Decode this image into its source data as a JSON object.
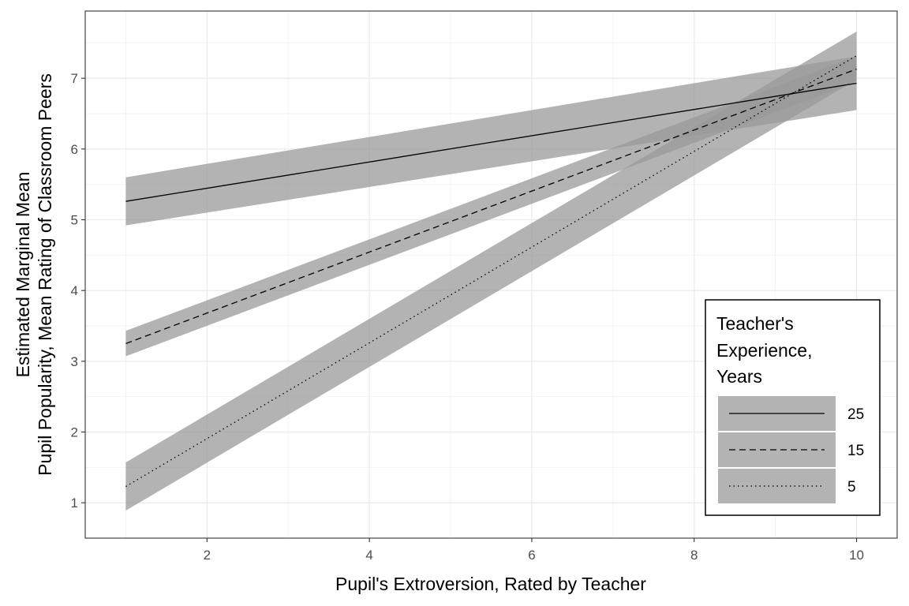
{
  "chart_data": {
    "type": "line",
    "xlabel": "Pupil's Extroversion, Rated by Teacher",
    "ylabel_lines": [
      "Estimated Marginal Mean",
      "Pupil Popularity, Mean Rating of Classroom Peers"
    ],
    "xlim": [
      0.5,
      10.5
    ],
    "ylim": [
      0.5,
      7.95
    ],
    "x_ticks": [
      2,
      4,
      6,
      8,
      10
    ],
    "y_ticks": [
      1,
      2,
      3,
      4,
      5,
      6,
      7
    ],
    "grid": true,
    "band_color": "#999999",
    "legend": {
      "position": "bottom-right",
      "title_lines": [
        "Teacher's",
        "Experience,",
        "Years"
      ]
    },
    "series": [
      {
        "name": "25",
        "linetype": "solid",
        "x": [
          1,
          10
        ],
        "y": [
          5.26,
          6.93
        ],
        "lower": [
          4.92,
          6.55
        ],
        "upper": [
          5.6,
          7.31
        ]
      },
      {
        "name": "15",
        "linetype": "dashed",
        "x": [
          1,
          10
        ],
        "y": [
          3.25,
          7.13
        ],
        "lower": [
          3.07,
          6.95
        ],
        "upper": [
          3.43,
          7.31
        ]
      },
      {
        "name": "5",
        "linetype": "dotted",
        "x": [
          1,
          10
        ],
        "y": [
          1.23,
          7.32
        ],
        "lower": [
          0.89,
          6.98
        ],
        "upper": [
          1.57,
          7.66
        ]
      }
    ]
  }
}
